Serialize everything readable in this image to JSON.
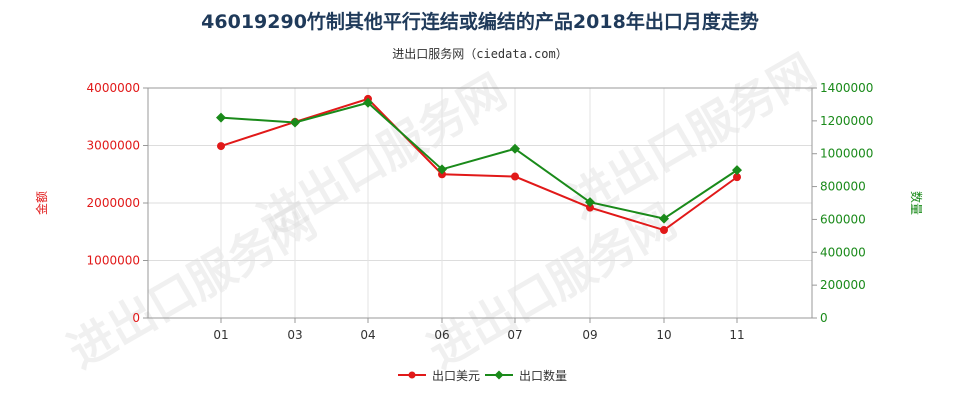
{
  "chart_data": {
    "type": "line",
    "title": "46019290竹制其他平行连结或编结的产品2018年出口月度走势",
    "subtitle": "进出口服务网（ciedata.com）",
    "categories": [
      "01",
      "03",
      "04",
      "06",
      "07",
      "09",
      "10",
      "11"
    ],
    "y_left": {
      "label": "金额",
      "ylim": [
        0,
        4000000
      ],
      "ticks": [
        "0",
        "1000000",
        "2000000",
        "3000000",
        "4000000"
      ],
      "color": "#e11919"
    },
    "y_right": {
      "label": "数量",
      "ylim": [
        0,
        1400000
      ],
      "ticks": [
        "0",
        "200000",
        "400000",
        "600000",
        "800000",
        "1000000",
        "1200000",
        "1400000"
      ],
      "color": "#1a8a1a"
    },
    "series": [
      {
        "name": "出口美元",
        "axis": "left",
        "color": "#e11919",
        "marker": "circle",
        "values": [
          2990000,
          3410000,
          3810000,
          2500000,
          2460000,
          1920000,
          1530000,
          2450000
        ]
      },
      {
        "name": "出口数量",
        "axis": "right",
        "color": "#1a8a1a",
        "marker": "diamond",
        "values": [
          1220000,
          1190000,
          1310000,
          905000,
          1030000,
          705000,
          605000,
          900000
        ]
      }
    ],
    "grid": true,
    "legend_position": "bottom-center",
    "watermark": "进出口服务网"
  }
}
